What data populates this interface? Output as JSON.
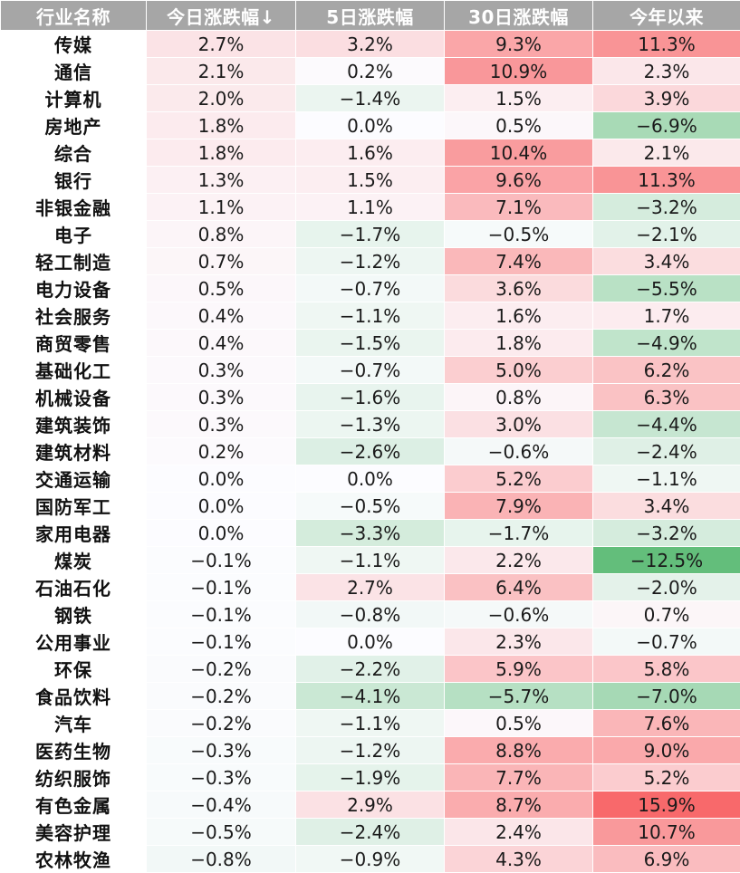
{
  "chart_data": {
    "type": "table",
    "columns": [
      "行业名称",
      "今日涨跌幅↓",
      "5日涨跌幅",
      "30日涨跌幅",
      "今年以来"
    ],
    "rows": [
      {
        "name": "传媒",
        "values": [
          "2.7%",
          "3.2%",
          "9.3%",
          "11.3%"
        ]
      },
      {
        "name": "通信",
        "values": [
          "2.1%",
          "0.2%",
          "10.9%",
          "2.3%"
        ]
      },
      {
        "name": "计算机",
        "values": [
          "2.0%",
          "−1.4%",
          "1.5%",
          "3.9%"
        ]
      },
      {
        "name": "房地产",
        "values": [
          "1.8%",
          "0.0%",
          "0.5%",
          "−6.9%"
        ]
      },
      {
        "name": "综合",
        "values": [
          "1.8%",
          "1.6%",
          "10.4%",
          "2.1%"
        ]
      },
      {
        "name": "银行",
        "values": [
          "1.3%",
          "1.5%",
          "9.6%",
          "11.3%"
        ]
      },
      {
        "name": "非银金融",
        "values": [
          "1.1%",
          "1.1%",
          "7.1%",
          "−3.2%"
        ]
      },
      {
        "name": "电子",
        "values": [
          "0.8%",
          "−1.7%",
          "−0.5%",
          "−2.1%"
        ]
      },
      {
        "name": "轻工制造",
        "values": [
          "0.7%",
          "−1.2%",
          "7.4%",
          "3.4%"
        ]
      },
      {
        "name": "电力设备",
        "values": [
          "0.5%",
          "−0.7%",
          "3.6%",
          "−5.5%"
        ]
      },
      {
        "name": "社会服务",
        "values": [
          "0.4%",
          "−1.1%",
          "1.6%",
          "1.7%"
        ]
      },
      {
        "name": "商贸零售",
        "values": [
          "0.4%",
          "−1.5%",
          "1.8%",
          "−4.9%"
        ]
      },
      {
        "name": "基础化工",
        "values": [
          "0.3%",
          "−0.7%",
          "5.0%",
          "6.2%"
        ]
      },
      {
        "name": "机械设备",
        "values": [
          "0.3%",
          "−1.6%",
          "0.8%",
          "6.3%"
        ]
      },
      {
        "name": "建筑装饰",
        "values": [
          "0.3%",
          "−1.3%",
          "3.0%",
          "−4.4%"
        ]
      },
      {
        "name": "建筑材料",
        "values": [
          "0.2%",
          "−2.6%",
          "−0.6%",
          "−2.4%"
        ]
      },
      {
        "name": "交通运输",
        "values": [
          "0.0%",
          "0.0%",
          "5.2%",
          "−1.1%"
        ]
      },
      {
        "name": "国防军工",
        "values": [
          "0.0%",
          "−0.5%",
          "7.9%",
          "3.4%"
        ]
      },
      {
        "name": "家用电器",
        "values": [
          "0.0%",
          "−3.3%",
          "−1.7%",
          "−3.2%"
        ]
      },
      {
        "name": "煤炭",
        "values": [
          "−0.1%",
          "−1.1%",
          "2.2%",
          "−12.5%"
        ]
      },
      {
        "name": "石油石化",
        "values": [
          "−0.1%",
          "2.7%",
          "6.4%",
          "−2.0%"
        ]
      },
      {
        "name": "钢铁",
        "values": [
          "−0.1%",
          "−0.8%",
          "−0.6%",
          "0.7%"
        ]
      },
      {
        "name": "公用事业",
        "values": [
          "−0.1%",
          "0.0%",
          "2.3%",
          "−0.7%"
        ]
      },
      {
        "name": "环保",
        "values": [
          "−0.2%",
          "−2.2%",
          "5.9%",
          "5.8%"
        ]
      },
      {
        "name": "食品饮料",
        "values": [
          "−0.2%",
          "−4.1%",
          "−5.7%",
          "−7.0%"
        ]
      },
      {
        "name": "汽车",
        "values": [
          "−0.2%",
          "−1.1%",
          "0.5%",
          "7.6%"
        ]
      },
      {
        "name": "医药生物",
        "values": [
          "−0.3%",
          "−1.2%",
          "8.8%",
          "9.0%"
        ]
      },
      {
        "name": "纺织服饰",
        "values": [
          "−0.3%",
          "−1.9%",
          "7.7%",
          "5.2%"
        ]
      },
      {
        "name": "有色金属",
        "values": [
          "−0.4%",
          "2.9%",
          "8.7%",
          "15.9%"
        ]
      },
      {
        "name": "美容护理",
        "values": [
          "−0.5%",
          "−2.4%",
          "2.4%",
          "10.7%"
        ]
      },
      {
        "name": "农林牧渔",
        "values": [
          "−0.8%",
          "−0.9%",
          "4.3%",
          "6.9%"
        ]
      }
    ],
    "colors": {
      "header_bg": "#a6a6a6",
      "header_text": "#ffffff",
      "positive_max": "#f8696b",
      "negative_max": "#63be7b",
      "neutral": "#fcfcff"
    }
  }
}
